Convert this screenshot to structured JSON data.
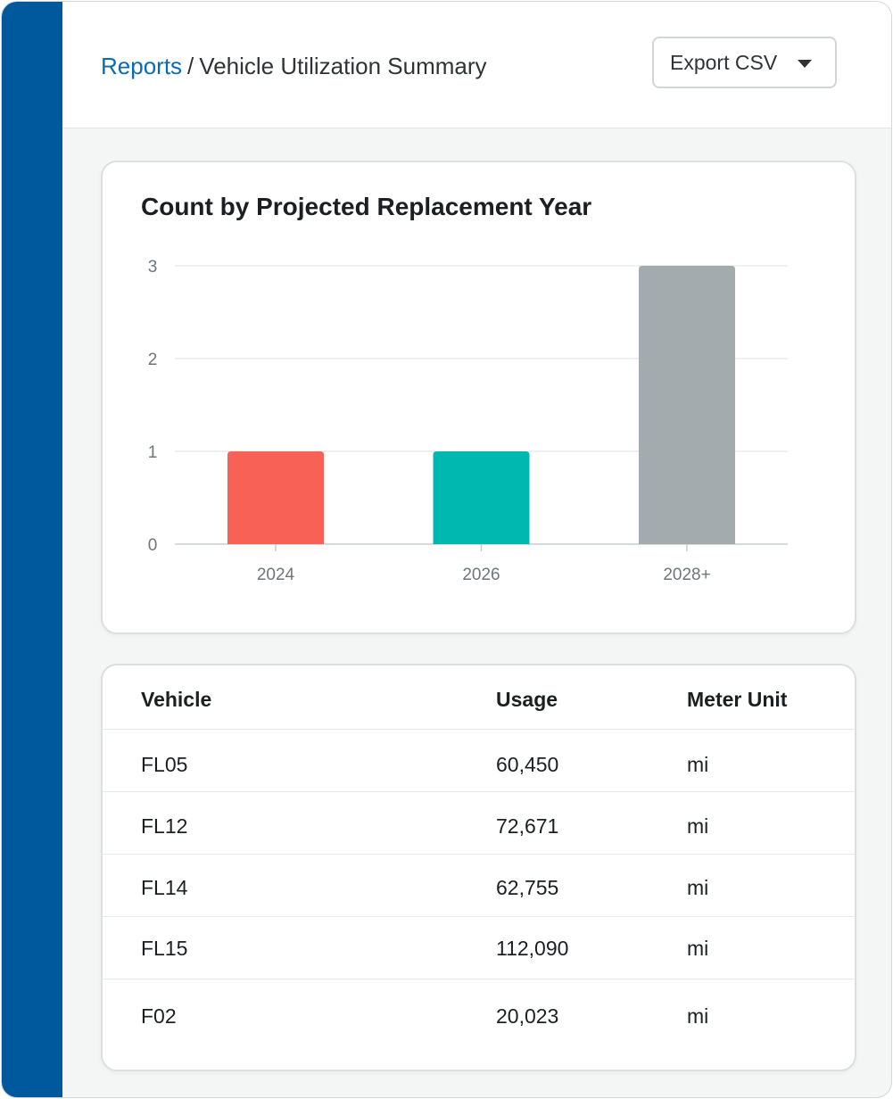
{
  "header": {
    "breadcrumb": {
      "root": "Reports",
      "separator": "/",
      "current": "Vehicle Utilization Summary"
    },
    "export_button": {
      "label": "Export CSV",
      "icon": "caret-down-icon"
    }
  },
  "colors": {
    "sidebar": "#00599c",
    "link": "#0a6ab8",
    "bar_2024": "#f86155",
    "bar_2026": "#00b8af",
    "bar_2028": "#a4abae"
  },
  "chart_data": {
    "type": "bar",
    "title": "Count by Projected Replacement Year",
    "categories": [
      "2024",
      "2026",
      "2028+"
    ],
    "values": [
      1,
      1,
      3
    ],
    "colors": [
      "#f86155",
      "#00b8af",
      "#a4abae"
    ],
    "ylim": [
      0,
      3
    ],
    "yticks": [
      "0",
      "1",
      "2",
      "3"
    ],
    "xlabel": "",
    "ylabel": "",
    "grid": true
  },
  "table": {
    "headers": {
      "vehicle": "Vehicle",
      "usage": "Usage",
      "unit": "Meter Unit"
    },
    "rows": [
      {
        "vehicle": "FL05",
        "usage": "60,450",
        "unit": "mi"
      },
      {
        "vehicle": "FL12",
        "usage": "72,671",
        "unit": "mi"
      },
      {
        "vehicle": "FL14",
        "usage": "62,755",
        "unit": "mi"
      },
      {
        "vehicle": "FL15",
        "usage": "112,090",
        "unit": "mi"
      },
      {
        "vehicle": "F02",
        "usage": "20,023",
        "unit": "mi"
      }
    ]
  }
}
